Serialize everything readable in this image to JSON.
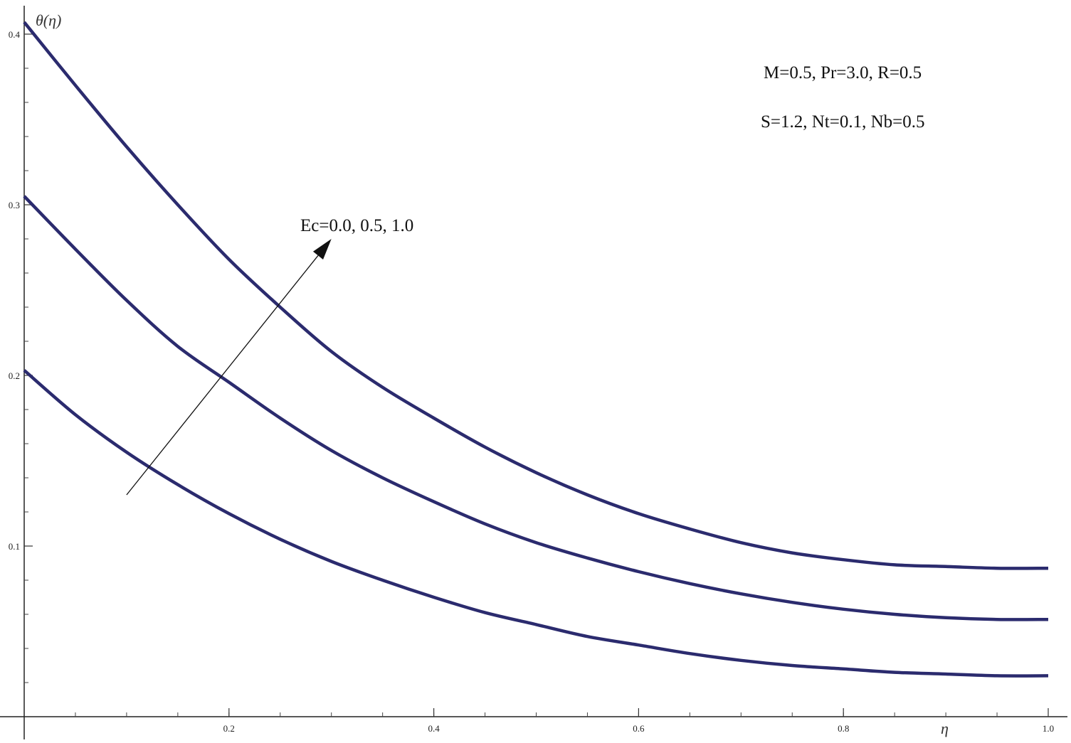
{
  "chart_data": {
    "type": "line",
    "title": "",
    "xlabel": "η",
    "ylabel": "θ(η)",
    "xlim": [
      0,
      1.0
    ],
    "ylim": [
      0,
      0.41
    ],
    "x_ticks": [
      0.2,
      0.4,
      0.6,
      0.8,
      1.0
    ],
    "x_tick_labels": [
      "0.2",
      "0.4",
      "0.6",
      "0.8",
      "1.0"
    ],
    "y_ticks": [
      0.1,
      0.2,
      0.3,
      0.4
    ],
    "y_tick_labels": [
      "0.1",
      "0.2",
      "0.3",
      "0.4"
    ],
    "x_minor_step": 0.05,
    "y_minor_step": 0.02,
    "grid": false,
    "line_color": "#2b2b6e",
    "series": [
      {
        "x": [
          0,
          0.05,
          0.1,
          0.15,
          0.2,
          0.25,
          0.3,
          0.35,
          0.4,
          0.45,
          0.5,
          0.55,
          0.6,
          0.65,
          0.7,
          0.75,
          0.8,
          0.85,
          0.9,
          0.95,
          1.0
        ],
        "y": [
          0.203,
          0.177,
          0.155,
          0.136,
          0.119,
          0.104,
          0.091,
          0.08,
          0.07,
          0.061,
          0.054,
          0.047,
          0.042,
          0.037,
          0.033,
          0.03,
          0.028,
          0.026,
          0.025,
          0.024,
          0.024
        ]
      },
      {
        "x": [
          0,
          0.05,
          0.1,
          0.15,
          0.2,
          0.25,
          0.3,
          0.35,
          0.4,
          0.45,
          0.5,
          0.55,
          0.6,
          0.65,
          0.7,
          0.75,
          0.8,
          0.85,
          0.9,
          0.95,
          1.0
        ],
        "y": [
          0.305,
          0.274,
          0.244,
          0.217,
          0.196,
          0.175,
          0.156,
          0.14,
          0.126,
          0.113,
          0.102,
          0.093,
          0.085,
          0.078,
          0.072,
          0.067,
          0.063,
          0.06,
          0.058,
          0.057,
          0.057
        ]
      },
      {
        "x": [
          0,
          0.05,
          0.1,
          0.15,
          0.2,
          0.25,
          0.3,
          0.35,
          0.4,
          0.45,
          0.5,
          0.55,
          0.6,
          0.65,
          0.7,
          0.75,
          0.8,
          0.85,
          0.9,
          0.95,
          1.0
        ],
        "y": [
          0.407,
          0.37,
          0.334,
          0.3,
          0.268,
          0.24,
          0.214,
          0.193,
          0.175,
          0.158,
          0.143,
          0.13,
          0.119,
          0.11,
          0.102,
          0.096,
          0.092,
          0.089,
          0.088,
          0.087,
          0.087
        ]
      }
    ],
    "annotations": {
      "line1": "M=0.5, Pr=3.0, R=0.5",
      "line2": "S=1.2, Nt=0.1, Nb=0.5",
      "arrow_label": "Ec=0.0, 0.5, 1.0"
    },
    "arrow": {
      "from": [
        0.1,
        0.13
      ],
      "to": [
        0.3,
        0.28
      ]
    }
  }
}
